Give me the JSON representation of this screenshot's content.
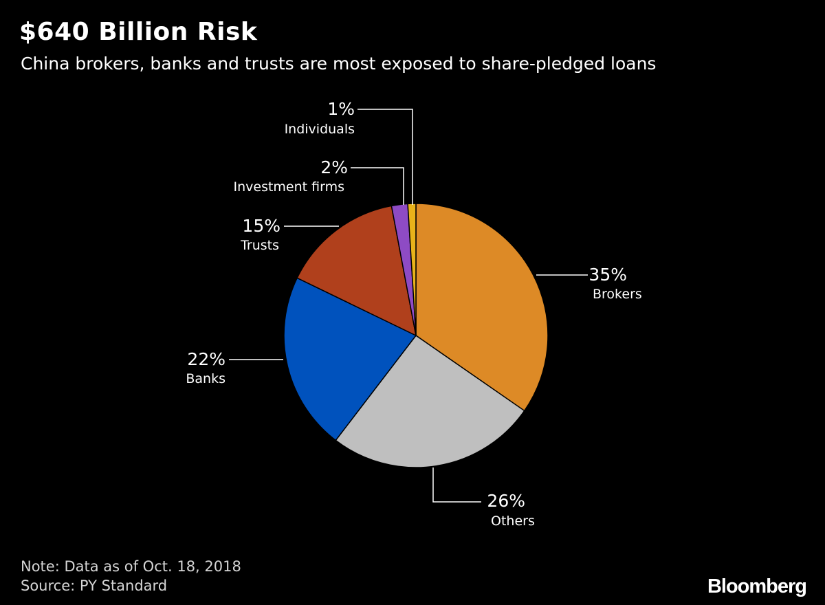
{
  "chart_data": {
    "type": "pie",
    "title": "$640 Billion Risk",
    "subtitle": "China brokers, banks and trusts are most exposed to share-pledged loans",
    "slices": [
      {
        "name": "Brokers",
        "value": 35,
        "label": "35%",
        "color": "#dd8a26"
      },
      {
        "name": "Others",
        "value": 26,
        "label": "26%",
        "color": "#bfbfbf"
      },
      {
        "name": "Banks",
        "value": 22,
        "label": "22%",
        "color": "#0052bd"
      },
      {
        "name": "Trusts",
        "value": 15,
        "label": "15%",
        "color": "#b0401c"
      },
      {
        "name": "Investment firms",
        "value": 2,
        "label": "2%",
        "color": "#8e4bc4"
      },
      {
        "name": "Individuals",
        "value": 1,
        "label": "1%",
        "color": "#e8b21a"
      }
    ]
  },
  "footer": {
    "note": "Note: Data as of Oct. 18, 2018",
    "source": "Source: PY Standard",
    "brand": "Bloomberg"
  }
}
